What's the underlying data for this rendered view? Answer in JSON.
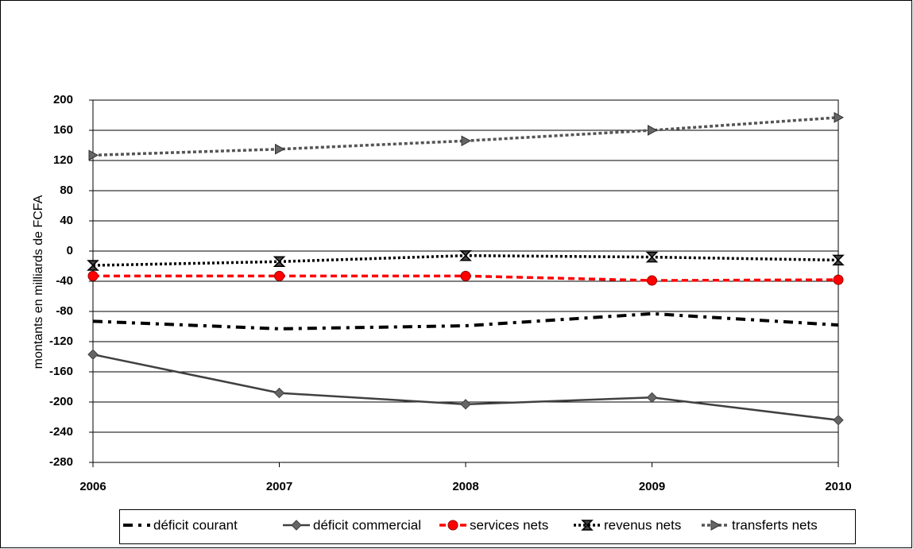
{
  "chart_data": {
    "type": "line",
    "y_label": "montants en milliards de FCFA",
    "x": [
      2006,
      2007,
      2008,
      2009,
      2010
    ],
    "xlim": [
      2006,
      2010
    ],
    "xticks": [
      2006,
      2007,
      2008,
      2009,
      2010
    ],
    "ylim": [
      -280,
      200
    ],
    "yticks": [
      200,
      160,
      120,
      80,
      40,
      0,
      -40,
      -80,
      -120,
      -160,
      -200,
      -240,
      -280
    ],
    "grid": true,
    "legend": "bottom",
    "series": [
      {
        "name": "déficit courant",
        "color": "#000000",
        "values": [
          -93,
          -103,
          -99,
          -83,
          -98
        ]
      },
      {
        "name": "déficit commercial",
        "color": "#404040",
        "values": [
          -137,
          -188,
          -203,
          -194,
          -224
        ]
      },
      {
        "name": "services nets",
        "color": "#ff0000",
        "values": [
          -33,
          -33,
          -33,
          -39,
          -38
        ]
      },
      {
        "name": "revenus nets",
        "color": "#000000",
        "values": [
          -19,
          -14,
          -6,
          -8,
          -12
        ]
      },
      {
        "name": "transferts nets",
        "color": "#555555",
        "values": [
          127,
          135,
          146,
          160,
          177
        ]
      }
    ]
  }
}
